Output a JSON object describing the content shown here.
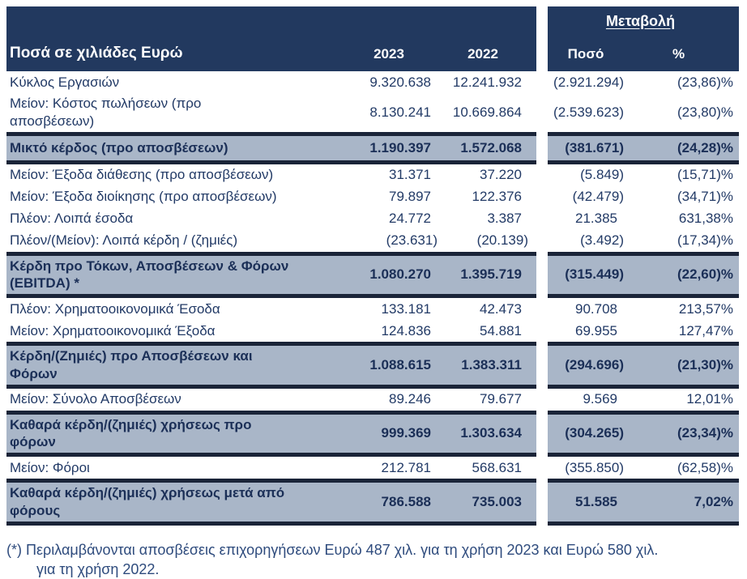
{
  "colors": {
    "header_navy": "#22395F",
    "highlight_row_bg": "#A9B6C8",
    "border_navy": "#1A2438",
    "body_text": "#223A66",
    "header_text": "#FFFFFF",
    "footnote_text": "#2E4B7D"
  },
  "table": {
    "title": "Ποσά σε χιλιάδες Ευρώ",
    "col_2023": "2023",
    "col_2022": "2022",
    "change_group": "Μεταβολή",
    "col_amount": "Ποσό",
    "col_pct": "%",
    "rows": [
      {
        "label": "Κύκλος Εργασιών",
        "v2023": "9.320.638",
        "v2022": "12.241.932",
        "amount": "(2.921.294)",
        "pct": "(23,86)%",
        "highlight": false
      },
      {
        "label": "Μείον: Κόστος πωλήσεων (προ\nαποσβέσεων)",
        "v2023": "8.130.241",
        "v2022": "10.669.864",
        "amount": "(2.539.623)",
        "pct": "(23,80)%",
        "highlight": false
      },
      {
        "label": "Μικτό κέρδος (προ αποσβέσεων)",
        "v2023": "1.190.397",
        "v2022": "1.572.068",
        "amount": "(381.671)",
        "pct": "(24,28)%",
        "highlight": true
      },
      {
        "label": "Μείον: Έξοδα διάθεσης (προ αποσβέσεων)",
        "v2023": "31.371",
        "v2022": "37.220",
        "amount": "(5.849)",
        "pct": "(15,71)%",
        "highlight": false
      },
      {
        "label": "Μείον: Έξοδα διοίκησης (προ αποσβέσεων)",
        "v2023": "79.897",
        "v2022": "122.376",
        "amount": "(42.479)",
        "pct": "(34,71)%",
        "highlight": false
      },
      {
        "label": "Πλέον: Λοιπά έσοδα",
        "v2023": "24.772",
        "v2022": "3.387",
        "amount": "21.385",
        "pct": "631,38%",
        "highlight": false
      },
      {
        "label": "Πλέον/(Μείον): Λοιπά κέρδη / (ζημιές)",
        "v2023": "(23.631)",
        "v2022": "(20.139)",
        "amount": "(3.492)",
        "pct": "(17,34)%",
        "highlight": false
      },
      {
        "label": "Κέρδη προ Τόκων, Αποσβέσεων & Φόρων\n(EBITDA) *",
        "v2023": "1.080.270",
        "v2022": "1.395.719",
        "amount": "(315.449)",
        "pct": "(22,60)%",
        "highlight": true
      },
      {
        "label": "Πλέον: Χρηματοοικονομικά Έσοδα",
        "v2023": "133.181",
        "v2022": "42.473",
        "amount": "90.708",
        "pct": "213,57%",
        "highlight": false
      },
      {
        "label": "Μείον: Χρηματοοικονομικά Έξοδα",
        "v2023": "124.836",
        "v2022": "54.881",
        "amount": "69.955",
        "pct": "127,47%",
        "highlight": false
      },
      {
        "label": "Κέρδη/(Ζημιές) προ Αποσβέσεων και\nΦόρων",
        "v2023": "1.088.615",
        "v2022": "1.383.311",
        "amount": "(294.696)",
        "pct": "(21,30)%",
        "highlight": true
      },
      {
        "label": "Μείον: Σύνολο Αποσβέσεων",
        "v2023": "89.246",
        "v2022": "79.677",
        "amount": "9.569",
        "pct": "12,01%",
        "highlight": false
      },
      {
        "label": "Καθαρά κέρδη/(ζημιές) χρήσεως προ\nφόρων",
        "v2023": "999.369",
        "v2022": "1.303.634",
        "amount": "(304.265)",
        "pct": "(23,34)%",
        "highlight": true
      },
      {
        "label": "Μείον: Φόροι",
        "v2023": "212.781",
        "v2022": "568.631",
        "amount": "(355.850)",
        "pct": "(62,58)%",
        "highlight": false
      },
      {
        "label": "Καθαρά κέρδη/(ζημιές) χρήσεως μετά από\nφόρους",
        "v2023": "786.588",
        "v2022": "735.003",
        "amount": "51.585",
        "pct": "7,02%",
        "highlight": true
      }
    ]
  },
  "footnote": {
    "line1": "(*) Περιλαμβάνονται αποσβέσεις επιχορηγήσεων Ευρώ 487 χιλ. για τη χρήση 2023 και Ευρώ 580 χιλ.",
    "line2": "για τη χρήση 2022."
  }
}
